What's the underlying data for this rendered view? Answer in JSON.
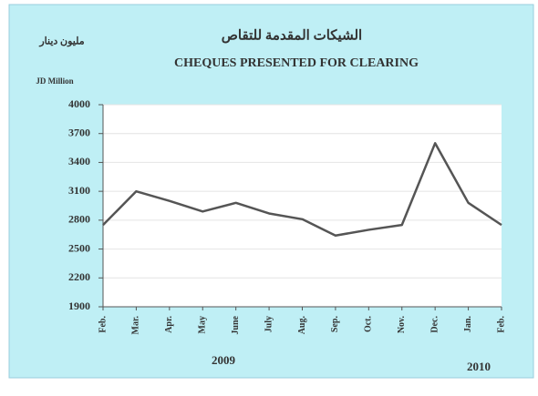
{
  "chart_data": {
    "type": "line",
    "title_ar": "الشيكات المقدمة للتقاص",
    "title": "CHEQUES PRESENTED FOR CLEARING",
    "y_label_ar": "مليون دينار",
    "y_label": "JD Million",
    "categories": [
      "Feb.",
      "Mar.",
      "Apr.",
      "May",
      "June",
      "July",
      "Aug.",
      "Sep.",
      "Oct.",
      "Nov.",
      "Dec.",
      "Jan.",
      "Feb."
    ],
    "series": [
      {
        "name": "Cheques presented for clearing",
        "color": "#555555",
        "values": [
          2750,
          3100,
          3000,
          2890,
          2980,
          2870,
          2810,
          2640,
          2700,
          2750,
          3600,
          2980,
          2750
        ]
      }
    ],
    "ylim": [
      1900,
      4000
    ],
    "yticks": [
      1900,
      2200,
      2500,
      2800,
      3100,
      3400,
      3700,
      4000
    ],
    "grid": true,
    "annotations": [
      "2009",
      "2010"
    ]
  }
}
